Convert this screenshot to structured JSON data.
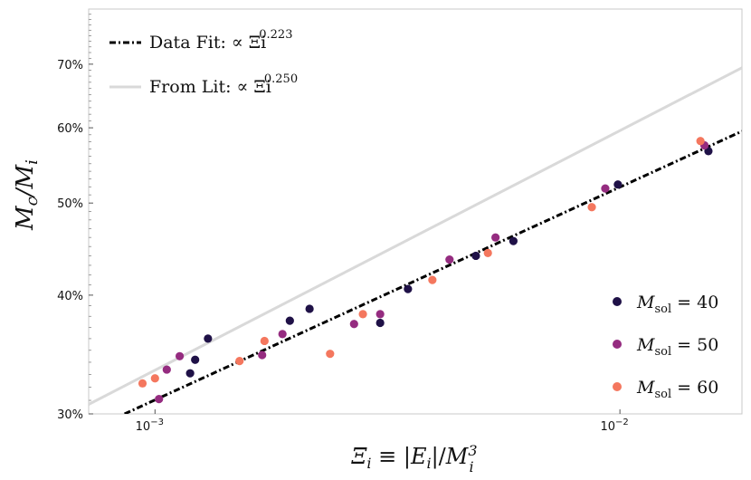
{
  "chart_data": {
    "type": "scatter",
    "xscale": "log",
    "yscale": "log",
    "xlim": [
      0.00072,
      0.0183
    ],
    "ylim": [
      0.3,
      0.8
    ],
    "xlabel": "Ξi ≡ |Ei|/Mi³",
    "ylabel": "Mc/Mi",
    "x_ticks": [
      {
        "value": 0.001,
        "label": "10",
        "exp": "−3"
      },
      {
        "value": 0.01,
        "label": "10",
        "exp": "−2"
      }
    ],
    "y_ticks": [
      {
        "value": 0.3,
        "label": "30%"
      },
      {
        "value": 0.4,
        "label": "40%"
      },
      {
        "value": 0.5,
        "label": "50%"
      },
      {
        "value": 0.6,
        "label": "60%"
      },
      {
        "value": 0.7,
        "label": "70%"
      }
    ],
    "grid": false,
    "fit_lines": [
      {
        "label": "Data Fit: ∝ Ξi",
        "exponent": "0.223",
        "style": "dashdot",
        "color": "#000000",
        "points": [
          [
            0.00086,
            0.3
          ],
          [
            0.0183,
            0.595
          ]
        ]
      },
      {
        "label": "From Lit: ∝ Ξi",
        "exponent": "0.250",
        "style": "solid",
        "color": "#d9d9d9",
        "points": [
          [
            0.00072,
            0.307
          ],
          [
            0.0183,
            0.694
          ]
        ]
      }
    ],
    "series": [
      {
        "name": "Msol = 40",
        "sub": "sol",
        "value": "40",
        "color": "#1f1147",
        "points": [
          [
            0.00119,
            0.331
          ],
          [
            0.00122,
            0.342
          ],
          [
            0.0013,
            0.36
          ],
          [
            0.00195,
            0.376
          ],
          [
            0.00215,
            0.387
          ],
          [
            0.00305,
            0.374
          ],
          [
            0.0035,
            0.406
          ],
          [
            0.0049,
            0.44
          ],
          [
            0.0059,
            0.456
          ],
          [
            0.0099,
            0.523
          ],
          [
            0.0155,
            0.567
          ]
        ]
      },
      {
        "name": "Msol = 50",
        "sub": "sol",
        "value": "50",
        "color": "#952c80",
        "points": [
          [
            0.00102,
            0.311
          ],
          [
            0.00106,
            0.334
          ],
          [
            0.00113,
            0.345
          ],
          [
            0.0017,
            0.346
          ],
          [
            0.00188,
            0.364
          ],
          [
            0.00268,
            0.373
          ],
          [
            0.00305,
            0.382
          ],
          [
            0.0043,
            0.436
          ],
          [
            0.0054,
            0.46
          ],
          [
            0.0093,
            0.518
          ],
          [
            0.0152,
            0.575
          ]
        ]
      },
      {
        "name": "Msol = 60",
        "sub": "sol",
        "value": "60",
        "color": "#f4775e",
        "points": [
          [
            0.00094,
            0.323
          ],
          [
            0.001,
            0.327
          ],
          [
            0.00152,
            0.341
          ],
          [
            0.00172,
            0.358
          ],
          [
            0.00238,
            0.347
          ],
          [
            0.0028,
            0.382
          ],
          [
            0.00395,
            0.415
          ],
          [
            0.0052,
            0.443
          ],
          [
            0.0087,
            0.495
          ],
          [
            0.0149,
            0.581
          ]
        ]
      }
    ],
    "legend_fits_position": "top-left",
    "legend_series_position": "lower-right"
  }
}
